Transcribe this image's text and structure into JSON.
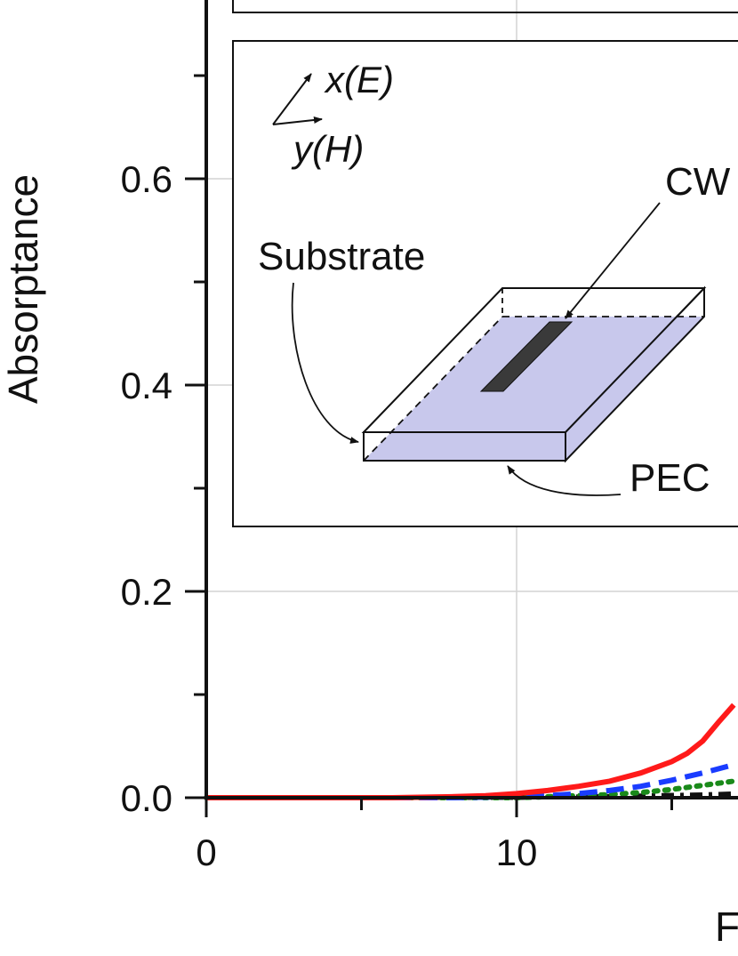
{
  "chart_data": {
    "type": "line",
    "title": "",
    "xlabel": "F",
    "ylabel": "Absorptance",
    "xlim": [
      0,
      17
    ],
    "ylim": [
      0,
      0.76
    ],
    "x_ticks": [
      0,
      10
    ],
    "x_tick_labels": [
      "0",
      "10"
    ],
    "y_ticks": [
      0.0,
      0.2,
      0.4,
      0.6
    ],
    "y_tick_labels": [
      "0.0",
      "0.2",
      "0.4",
      "0.6"
    ],
    "grid": true,
    "series": [
      {
        "name": "solid",
        "color": "#ff1a1a",
        "style": "solid",
        "x": [
          0,
          2,
          4,
          6,
          8,
          9,
          10,
          11,
          12,
          13,
          14,
          15,
          15.5,
          16,
          16.5,
          17
        ],
        "y": [
          0,
          0,
          0,
          0,
          0.001,
          0.002,
          0.004,
          0.007,
          0.011,
          0.016,
          0.024,
          0.035,
          0.043,
          0.055,
          0.073,
          0.09
        ]
      },
      {
        "name": "dashed",
        "color": "#1a3cff",
        "style": "dashed",
        "x": [
          0,
          2,
          4,
          6,
          8,
          10,
          11,
          12,
          13,
          14,
          15,
          16,
          17
        ],
        "y": [
          0,
          0,
          0,
          0,
          0,
          0.001,
          0.002,
          0.004,
          0.007,
          0.011,
          0.017,
          0.024,
          0.032
        ]
      },
      {
        "name": "dotted",
        "color": "#1a8a1a",
        "style": "dotted",
        "x": [
          0,
          2,
          4,
          6,
          8,
          10,
          12,
          13,
          14,
          15,
          16,
          17
        ],
        "y": [
          0,
          0,
          0,
          0,
          0,
          0,
          0.002,
          0.003,
          0.005,
          0.008,
          0.012,
          0.016
        ]
      },
      {
        "name": "dash-dot",
        "color": "#111111",
        "style": "dashdot",
        "x": [
          0,
          2,
          4,
          6,
          8,
          10,
          12,
          14,
          16,
          17
        ],
        "y": [
          0,
          0,
          0,
          0,
          0,
          0,
          0.001,
          0.002,
          0.003,
          0.004
        ]
      }
    ]
  },
  "inset": {
    "axis_x_label": "x(E)",
    "axis_y_label": "y(H)",
    "label_cw": "CW",
    "label_substrate": "Substrate",
    "label_pec": "PEC",
    "colors": {
      "substrate_fill": "#c8c8ec",
      "cw_fill": "#3a3a3a"
    }
  }
}
